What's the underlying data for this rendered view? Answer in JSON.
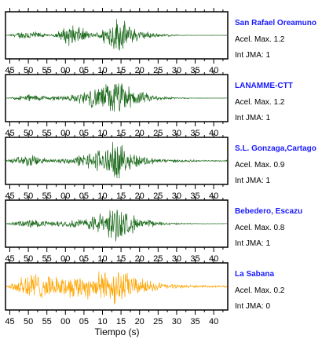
{
  "chart_data": {
    "type": "line",
    "xlabel": "Tiempo (s)",
    "x_tick_labels": [
      "45",
      "50",
      "55",
      "00",
      "05",
      "10",
      "15",
      "20",
      "25",
      "30",
      "35",
      "40"
    ],
    "series": [
      {
        "name": "San Rafael Oreamuno",
        "color": "#1e6b1e",
        "values": [
          0,
          0.3,
          0.02,
          0.65,
          0.06,
          1.0,
          0.28,
          0.08,
          0.01,
          0.003,
          0
        ],
        "info": [
          {
            "label": "Acel. Max.",
            "value": "1.2"
          },
          {
            "label": "Int JMA:",
            "value": "1"
          }
        ]
      },
      {
        "name": "LANAMME-CTT",
        "color": "#1e6b1e",
        "values": [
          0,
          0.22,
          0.1,
          0.18,
          0.55,
          1.0,
          0.35,
          0.1,
          0.02,
          0.005,
          0
        ],
        "info": [
          {
            "label": "Acel. Max.",
            "value": "1.2"
          },
          {
            "label": "Int JMA:",
            "value": "1"
          }
        ]
      },
      {
        "name": "S.L. Gonzaga,Cartago",
        "color": "#1e6b1e",
        "values": [
          0.05,
          0.35,
          0.1,
          0.2,
          0.55,
          1.0,
          0.32,
          0.12,
          0.06,
          0.04,
          0.03
        ],
        "info": [
          {
            "label": "Acel. Max.",
            "value": "0.9"
          },
          {
            "label": "Int JMA:",
            "value": "1"
          }
        ]
      },
      {
        "name": "Bebedero, Escazu",
        "color": "#1e6b1e",
        "values": [
          0.02,
          0.25,
          0.12,
          0.2,
          0.45,
          1.0,
          0.3,
          0.1,
          0.03,
          0.01,
          0
        ],
        "info": [
          {
            "label": "Acel. Max.",
            "value": "0.8"
          },
          {
            "label": "Int JMA:",
            "value": "1"
          }
        ]
      },
      {
        "name": "La Sabana",
        "color": "#ffa500",
        "values": [
          0.03,
          0.9,
          0.5,
          0.6,
          0.7,
          1.0,
          0.45,
          0.2,
          0.08,
          0.05,
          0.04
        ],
        "info": [
          {
            "label": "Acel. Max.",
            "value": "0.2"
          },
          {
            "label": "Int JMA:",
            "value": "0"
          }
        ]
      }
    ]
  }
}
